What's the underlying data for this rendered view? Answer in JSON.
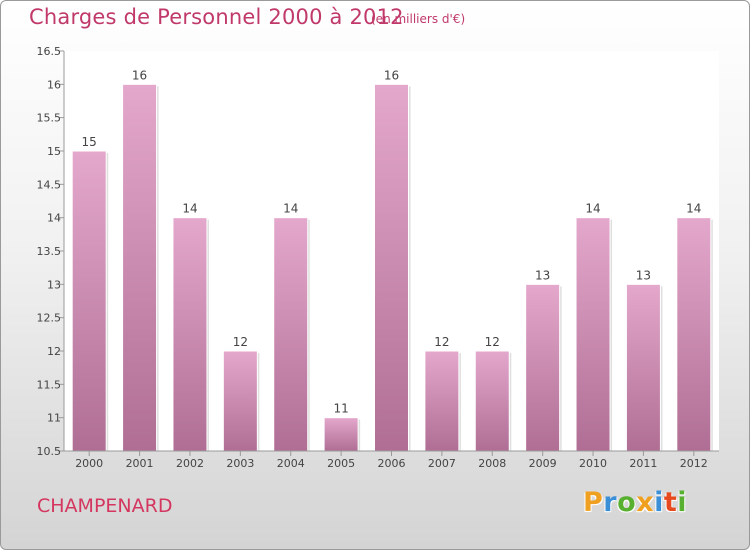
{
  "header": {
    "title": "Charges de Personnel 2000 à 2012",
    "subtitle": "(en milliers d'€)"
  },
  "footer": {
    "commune": "CHAMPENARD",
    "logo": "Proxiti"
  },
  "colors": {
    "bar_light": "#e4a8cc",
    "bar_dark": "#b06e94",
    "title": "#c0396a",
    "logo_letters": [
      "#f0a020",
      "#3a8fd6",
      "#58b030",
      "#f0a020",
      "#3a8fd6",
      "#e84a20",
      "#58b030"
    ]
  },
  "chart_data": {
    "type": "bar",
    "title": "Charges de Personnel 2000 à 2012",
    "subtitle": "(en milliers d'€)",
    "categories": [
      "2000",
      "2001",
      "2002",
      "2003",
      "2004",
      "2005",
      "2006",
      "2007",
      "2008",
      "2009",
      "2010",
      "2011",
      "2012"
    ],
    "values": [
      15,
      16,
      14,
      12,
      14,
      11,
      16,
      12,
      12,
      13,
      14,
      13,
      14
    ],
    "data_labels": [
      "15",
      "16",
      "14",
      "12",
      "14",
      "11",
      "16",
      "12",
      "12",
      "13",
      "14",
      "13",
      "14"
    ],
    "y_ticks": [
      10.5,
      11,
      11.5,
      12,
      12.5,
      13,
      13.5,
      14,
      14.5,
      15,
      15.5,
      16,
      16.5
    ],
    "y_tick_labels": [
      "10.5",
      "11",
      "11.5",
      "12",
      "12.5",
      "13",
      "13.5",
      "14",
      "14.5",
      "15",
      "15.5",
      "16",
      "16.5"
    ],
    "ylim": [
      10.5,
      16.5
    ],
    "xlabel": "",
    "ylabel": "",
    "grid": false,
    "legend": "none"
  }
}
